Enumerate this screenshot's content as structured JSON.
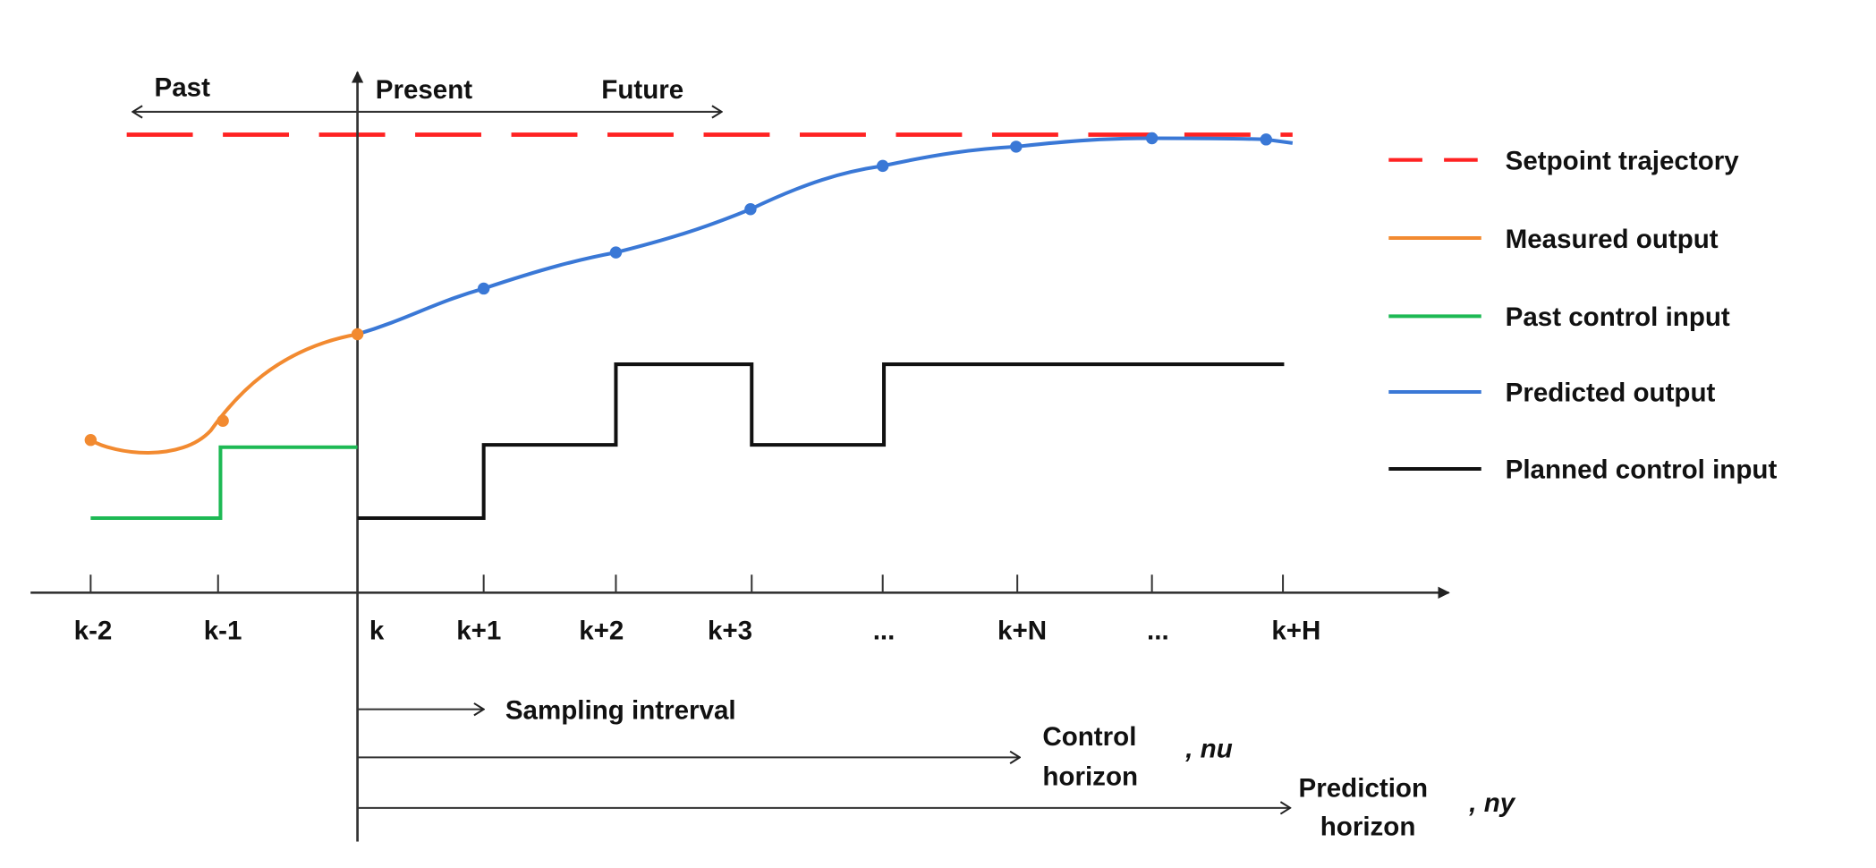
{
  "colors": {
    "setpoint": "#ff2222",
    "measured": "#f28a30",
    "past_input": "#1db954",
    "predicted": "#3a78d6",
    "planned_input": "#111111",
    "axis": "#333333"
  },
  "time_labels": {
    "past": "Past",
    "present": "Present",
    "future": "Future"
  },
  "x_ticks": [
    "k-2",
    "k-1",
    "k",
    "k+1",
    "k+2",
    "k+3",
    "...",
    "k+N",
    "...",
    "k+H"
  ],
  "legend": [
    {
      "label": "Setpoint trajectory",
      "style": "dashed",
      "color": "#ff2222"
    },
    {
      "label": "Measured output",
      "style": "solid",
      "color": "#f28a30"
    },
    {
      "label": "Past control input",
      "style": "solid",
      "color": "#1db954"
    },
    {
      "label": "Predicted output",
      "style": "solid",
      "color": "#3a78d6"
    },
    {
      "label": "Planned control input",
      "style": "solid",
      "color": "#111111"
    }
  ],
  "horizons": {
    "sampling": "Sampling intrerval",
    "control_line1": "Control",
    "control_line2": "horizon",
    "control_symbol": ", nu",
    "prediction_line1": "Prediction",
    "prediction_line2": "horizon",
    "prediction_symbol": ", ny"
  }
}
